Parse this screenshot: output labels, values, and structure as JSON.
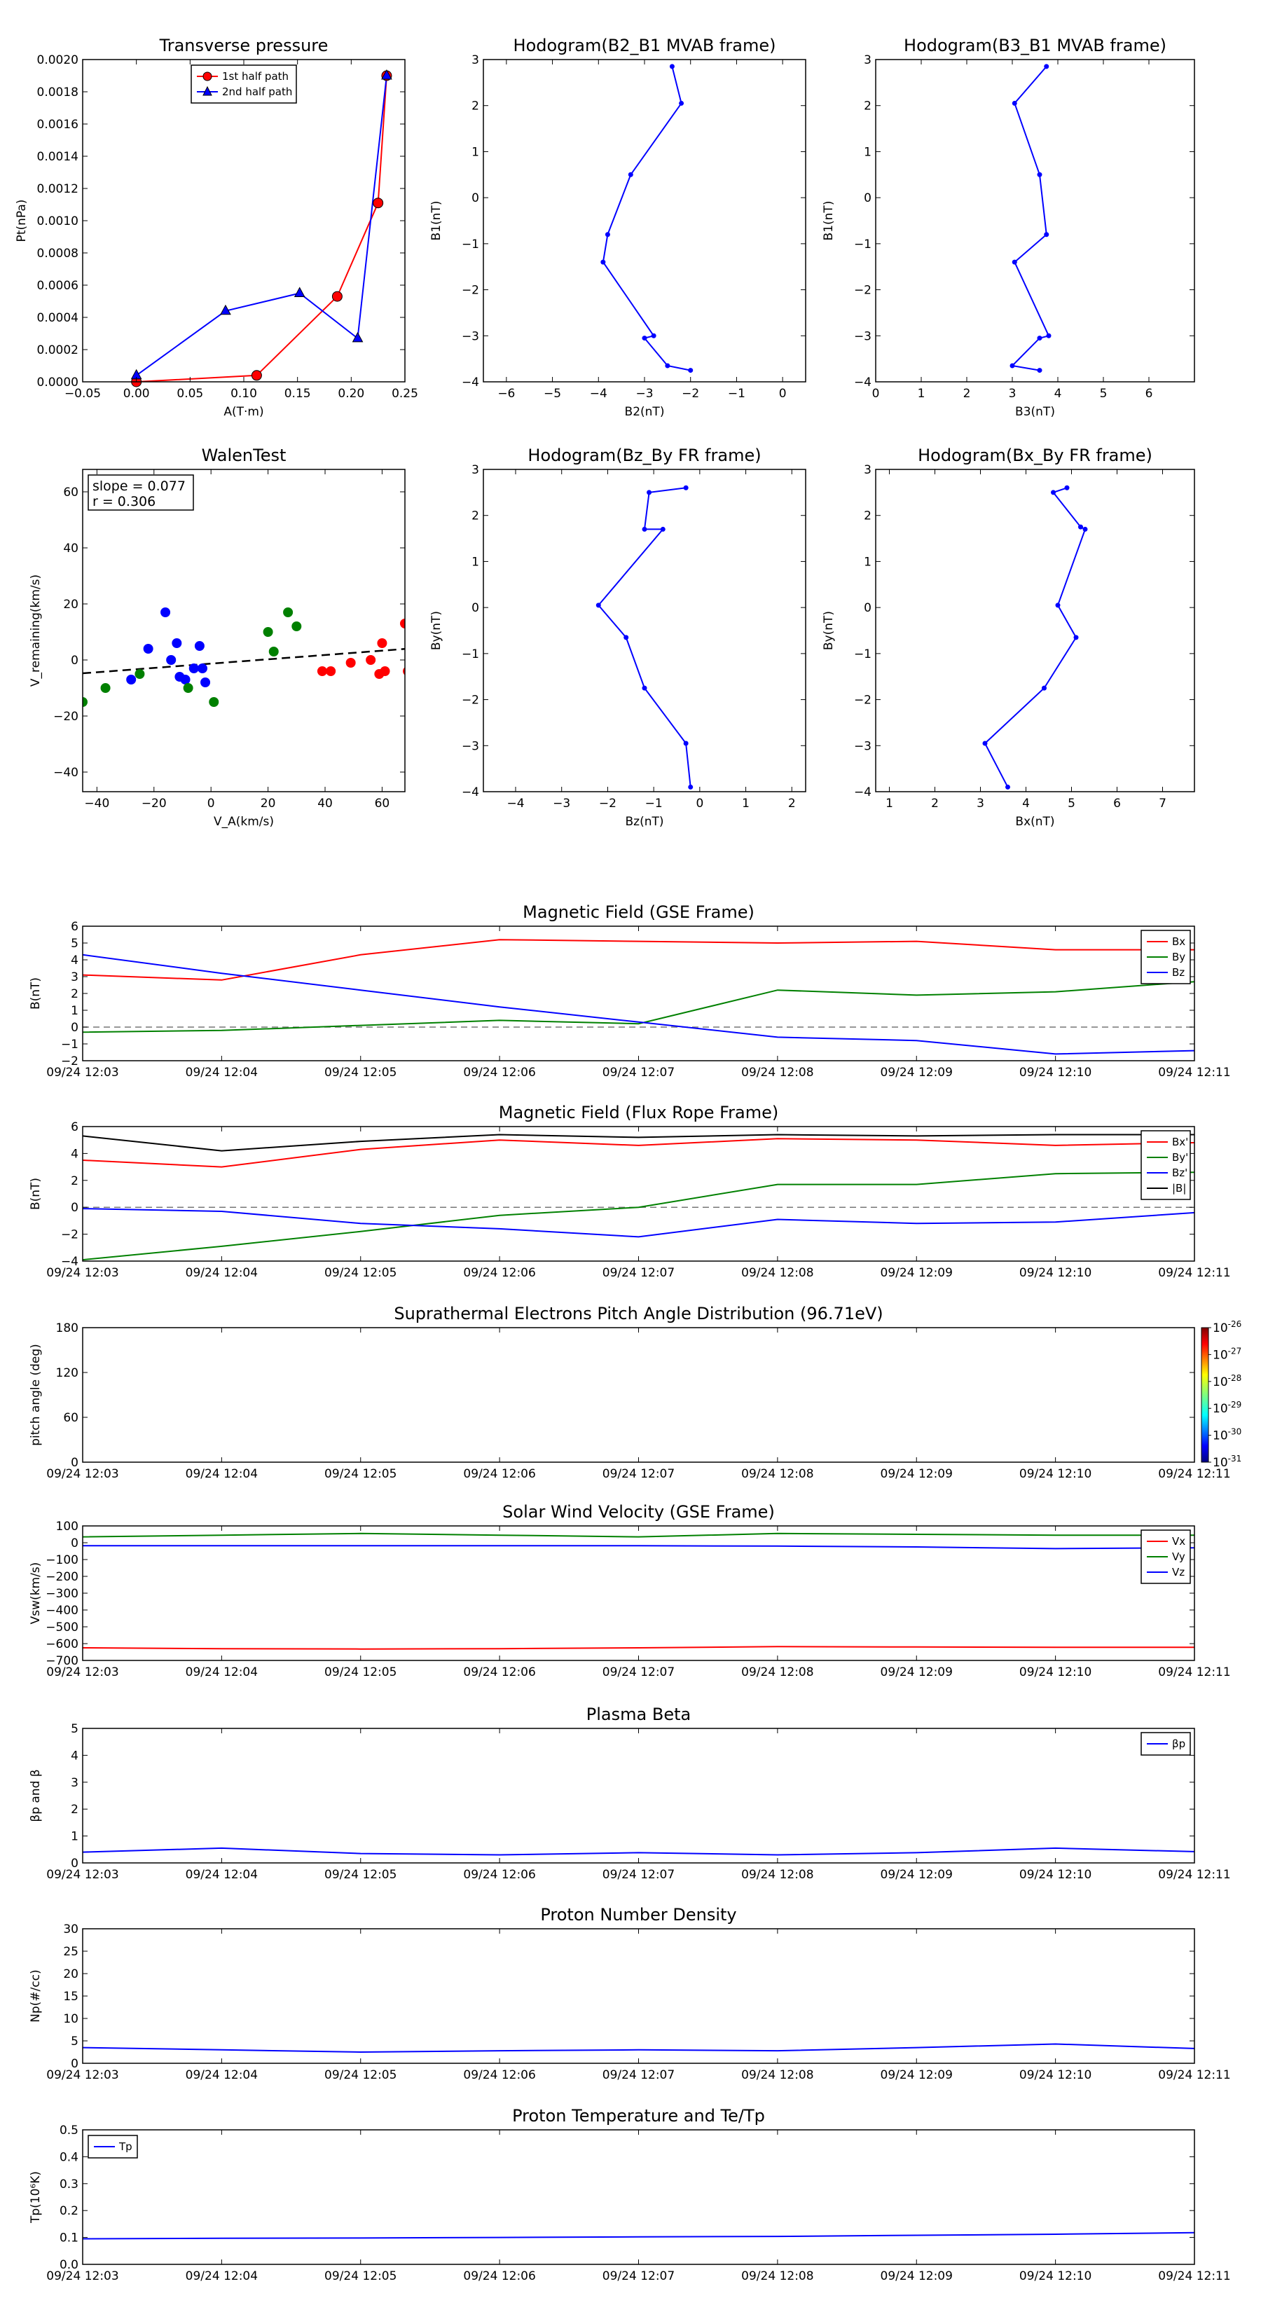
{
  "chart_data": [
    {
      "id": "tp",
      "type": "line",
      "title": "Transverse pressure",
      "xlabel": "A(T·m)",
      "ylabel": "Pt(nPa)",
      "xlim": [
        -0.05,
        0.25
      ],
      "ylim": [
        0,
        0.002
      ],
      "xticks": [
        -0.05,
        0.0,
        0.05,
        0.1,
        0.15,
        0.2,
        0.25
      ],
      "yticks": [
        0,
        0.0002,
        0.0004,
        0.0006,
        0.0008,
        0.001,
        0.0012,
        0.0014,
        0.0016,
        0.0018,
        0.002
      ],
      "xtick_labels": [
        "−0.05",
        "0.00",
        "0.05",
        "0.10",
        "0.15",
        "0.20",
        "0.25"
      ],
      "ytick_labels": [
        "0.0000",
        "0.0002",
        "0.0004",
        "0.0006",
        "0.0008",
        "0.0010",
        "0.0012",
        "0.0014",
        "0.0016",
        "0.0018",
        "0.0020"
      ],
      "legend": "top-center",
      "series": [
        {
          "name": "1st half path",
          "color": "#ff0000",
          "marker": "circle",
          "x": [
            0.0,
            0.112,
            0.187,
            0.225,
            0.233
          ],
          "y": [
            0.0,
            4e-05,
            0.00053,
            0.00111,
            0.0019
          ]
        },
        {
          "name": "2nd half path",
          "color": "#0000ff",
          "marker": "triangle",
          "x": [
            0.0,
            0.083,
            0.152,
            0.206,
            0.233
          ],
          "y": [
            4e-05,
            0.00044,
            0.00055,
            0.00027,
            0.0019
          ]
        }
      ]
    },
    {
      "id": "h1",
      "type": "line",
      "title": "Hodogram(B2_B1 MVAB frame)",
      "xlabel": "B2(nT)",
      "ylabel": "B1(nT)",
      "xlim": [
        -6.5,
        0.5
      ],
      "ylim": [
        -4,
        3
      ],
      "xticks": [
        -6,
        -5,
        -4,
        -3,
        -2,
        -1,
        0
      ],
      "yticks": [
        -4,
        -3,
        -2,
        -1,
        0,
        1,
        2,
        3
      ],
      "xtick_labels": [
        "−6",
        "−5",
        "−4",
        "−3",
        "−2",
        "−1",
        "0"
      ],
      "ytick_labels": [
        "−4",
        "−3",
        "−2",
        "−1",
        "0",
        "1",
        "2",
        "3"
      ],
      "series": [
        {
          "name": "",
          "color": "#0000ff",
          "marker": "dot",
          "x": [
            -2.4,
            -2.2,
            -3.3,
            -3.8,
            -3.9,
            -2.8,
            -3.0,
            -2.5,
            -2.0
          ],
          "y": [
            2.85,
            2.05,
            0.5,
            -0.8,
            -1.4,
            -3.0,
            -3.05,
            -3.65,
            -3.75
          ]
        }
      ]
    },
    {
      "id": "h2",
      "type": "line",
      "title": "Hodogram(B3_B1 MVAB frame)",
      "xlabel": "B3(nT)",
      "ylabel": "B1(nT)",
      "xlim": [
        0,
        7
      ],
      "ylim": [
        -4,
        3
      ],
      "xticks": [
        0,
        1,
        2,
        3,
        4,
        5,
        6
      ],
      "yticks": [
        -4,
        -3,
        -2,
        -1,
        0,
        1,
        2,
        3
      ],
      "xtick_labels": [
        "0",
        "1",
        "2",
        "3",
        "4",
        "5",
        "6"
      ],
      "ytick_labels": [
        "−4",
        "−3",
        "−2",
        "−1",
        "0",
        "1",
        "2",
        "3"
      ],
      "series": [
        {
          "name": "",
          "color": "#0000ff",
          "marker": "dot",
          "x": [
            3.75,
            3.05,
            3.6,
            3.75,
            3.05,
            3.8,
            3.6,
            3.0,
            3.6
          ],
          "y": [
            2.85,
            2.05,
            0.5,
            -0.8,
            -1.4,
            -3.0,
            -3.05,
            -3.65,
            -3.75
          ]
        }
      ]
    },
    {
      "id": "walen",
      "type": "scatter",
      "title": "WalenTest",
      "xlabel": "V_A(km/s)",
      "ylabel": "V_remaining(km/s)",
      "xlim": [
        -45,
        68
      ],
      "ylim": [
        -47,
        68
      ],
      "xticks": [
        -40,
        -20,
        0,
        20,
        40,
        60
      ],
      "yticks": [
        -40,
        -20,
        0,
        20,
        40,
        60
      ],
      "xtick_labels": [
        "−40",
        "−20",
        "0",
        "20",
        "40",
        "60"
      ],
      "ytick_labels": [
        "−40",
        "−20",
        "0",
        "20",
        "40",
        "60"
      ],
      "annotation": [
        "slope = 0.077",
        "r = 0.306"
      ],
      "fit": {
        "slope": 0.077,
        "intercept": -1.3
      },
      "series": [
        {
          "name": "",
          "color": "#0000ff",
          "x": [
            -22,
            -16,
            -14,
            -12,
            -11,
            -4,
            -3,
            -2,
            -28,
            -6,
            -9
          ],
          "y": [
            4,
            17,
            0,
            6,
            -6,
            5,
            -3,
            -8,
            -7,
            -3,
            -7
          ]
        },
        {
          "name": "",
          "color": "#008000",
          "x": [
            -45,
            -37,
            -25,
            -8,
            1,
            20,
            22,
            27,
            30
          ],
          "y": [
            -15,
            -10,
            -5,
            -10,
            -15,
            10,
            3,
            17,
            12
          ]
        },
        {
          "name": "",
          "color": "#ff0000",
          "x": [
            39,
            42,
            49,
            56,
            59,
            61,
            68,
            69,
            60
          ],
          "y": [
            -4,
            -4,
            -1,
            0,
            -5,
            -4,
            13,
            -4,
            6
          ]
        }
      ]
    },
    {
      "id": "h3",
      "type": "line",
      "title": "Hodogram(Bz_By FR frame)",
      "xlabel": "Bz(nT)",
      "ylabel": "By(nT)",
      "xlim": [
        -4.7,
        2.3
      ],
      "ylim": [
        -4,
        3
      ],
      "xticks": [
        -4,
        -3,
        -2,
        -1,
        0,
        1,
        2
      ],
      "yticks": [
        -4,
        -3,
        -2,
        -1,
        0,
        1,
        2,
        3
      ],
      "xtick_labels": [
        "−4",
        "−3",
        "−2",
        "−1",
        "0",
        "1",
        "2"
      ],
      "ytick_labels": [
        "−4",
        "−3",
        "−2",
        "−1",
        "0",
        "1",
        "2",
        "3"
      ],
      "series": [
        {
          "name": "",
          "color": "#0000ff",
          "marker": "dot",
          "x": [
            -0.3,
            -1.1,
            -1.2,
            -0.8,
            -2.2,
            -1.6,
            -1.2,
            -0.3,
            -0.2
          ],
          "y": [
            2.6,
            2.5,
            1.7,
            1.7,
            0.05,
            -0.65,
            -1.75,
            -2.95,
            -3.9
          ]
        }
      ]
    },
    {
      "id": "h4",
      "type": "line",
      "title": "Hodogram(Bx_By FR frame)",
      "xlabel": "Bx(nT)",
      "ylabel": "By(nT)",
      "xlim": [
        0.7,
        7.7
      ],
      "ylim": [
        -4,
        3
      ],
      "xticks": [
        1,
        2,
        3,
        4,
        5,
        6,
        7
      ],
      "yticks": [
        -4,
        -3,
        -2,
        -1,
        0,
        1,
        2,
        3
      ],
      "xtick_labels": [
        "1",
        "2",
        "3",
        "4",
        "5",
        "6",
        "7"
      ],
      "ytick_labels": [
        "−4",
        "−3",
        "−2",
        "−1",
        "0",
        "1",
        "2",
        "3"
      ],
      "series": [
        {
          "name": "",
          "color": "#0000ff",
          "marker": "dot",
          "x": [
            4.9,
            4.6,
            5.2,
            5.3,
            4.7,
            5.1,
            4.4,
            3.1,
            3.6
          ],
          "y": [
            2.6,
            2.5,
            1.75,
            1.7,
            0.05,
            -0.65,
            -1.75,
            -2.95,
            -3.9
          ]
        }
      ]
    },
    {
      "id": "mag_gse",
      "type": "line",
      "title": "Magnetic Field (GSE Frame)",
      "ylabel": "B(nT)",
      "xlim": [
        0,
        8
      ],
      "ylim": [
        -2,
        6
      ],
      "yticks": [
        -2,
        -1,
        0,
        1,
        2,
        3,
        4,
        5,
        6
      ],
      "ytick_labels": [
        "−2",
        "−1",
        "0",
        "1",
        "2",
        "3",
        "4",
        "5",
        "6"
      ],
      "hline": 0,
      "legend": "top-right",
      "series": [
        {
          "name": "Bx",
          "color": "#ff0000",
          "x": [
            0,
            1,
            2,
            3,
            4,
            5,
            6,
            7,
            8
          ],
          "y": [
            3.1,
            2.8,
            4.3,
            5.2,
            5.1,
            5.0,
            5.1,
            4.6,
            4.6
          ]
        },
        {
          "name": "By",
          "color": "#008000",
          "x": [
            0,
            1,
            2,
            3,
            4,
            5,
            6,
            7,
            8
          ],
          "y": [
            -0.3,
            -0.2,
            0.1,
            0.4,
            0.2,
            2.2,
            1.9,
            2.1,
            2.7
          ]
        },
        {
          "name": "Bz",
          "color": "#0000ff",
          "x": [
            0,
            1,
            2,
            3,
            4,
            5,
            6,
            7,
            8
          ],
          "y": [
            4.3,
            3.2,
            2.2,
            1.2,
            0.3,
            -0.6,
            -0.8,
            -1.6,
            -1.4
          ]
        }
      ]
    },
    {
      "id": "mag_fr",
      "type": "line",
      "title": "Magnetic Field (Flux Rope Frame)",
      "ylabel": "B(nT)",
      "xlim": [
        0,
        8
      ],
      "ylim": [
        -4,
        6
      ],
      "yticks": [
        -4,
        -2,
        0,
        2,
        4,
        6
      ],
      "ytick_labels": [
        "−4",
        "−2",
        "0",
        "2",
        "4",
        "6"
      ],
      "hline": 0,
      "legend": "top-right",
      "series": [
        {
          "name": "Bx'",
          "color": "#ff0000",
          "x": [
            0,
            1,
            2,
            3,
            4,
            5,
            6,
            7,
            8
          ],
          "y": [
            3.5,
            3.0,
            4.3,
            5.0,
            4.6,
            5.1,
            5.0,
            4.6,
            4.8
          ]
        },
        {
          "name": "By'",
          "color": "#008000",
          "x": [
            0,
            1,
            2,
            3,
            4,
            5,
            6,
            7,
            8
          ],
          "y": [
            -3.9,
            -2.9,
            -1.8,
            -0.6,
            0.0,
            1.7,
            1.7,
            2.5,
            2.6
          ]
        },
        {
          "name": "Bz'",
          "color": "#0000ff",
          "x": [
            0,
            1,
            2,
            3,
            4,
            5,
            6,
            7,
            8
          ],
          "y": [
            -0.1,
            -0.3,
            -1.2,
            -1.6,
            -2.2,
            -0.9,
            -1.2,
            -1.1,
            -0.4
          ]
        },
        {
          "name": "|B|",
          "color": "#000000",
          "x": [
            0,
            1,
            2,
            3,
            4,
            5,
            6,
            7,
            8
          ],
          "y": [
            5.3,
            4.2,
            4.9,
            5.4,
            5.2,
            5.4,
            5.3,
            5.4,
            5.4
          ]
        }
      ]
    },
    {
      "id": "pad",
      "type": "heatmap",
      "title": "Suprathermal Electrons Pitch Angle Distribution (96.71eV)",
      "ylabel": "pitch angle (deg)",
      "xlim": [
        0,
        8
      ],
      "ylim": [
        0,
        180
      ],
      "yticks": [
        0,
        60,
        120,
        180
      ],
      "ytick_labels": [
        "0",
        "60",
        "120",
        "180"
      ],
      "colorbar": {
        "base": "10",
        "exponents": [
          "-26",
          "-27",
          "-28",
          "-29",
          "-30",
          "-31"
        ]
      }
    },
    {
      "id": "vsw",
      "type": "line",
      "title": "Solar Wind Velocity (GSE Frame)",
      "ylabel": "Vsw(km/s)",
      "xlim": [
        0,
        8
      ],
      "ylim": [
        -700,
        100
      ],
      "yticks": [
        -700,
        -600,
        -500,
        -400,
        -300,
        -200,
        -100,
        0,
        100
      ],
      "ytick_labels": [
        "−700",
        "−600",
        "−500",
        "−400",
        "−300",
        "−200",
        "−100",
        "0",
        "100"
      ],
      "legend": "top-right",
      "series": [
        {
          "name": "Vx",
          "color": "#ff0000",
          "x": [
            0,
            1,
            2,
            3,
            4,
            5,
            6,
            7,
            8
          ],
          "y": [
            -625,
            -630,
            -632,
            -630,
            -625,
            -618,
            -620,
            -622,
            -622
          ]
        },
        {
          "name": "Vy",
          "color": "#008000",
          "x": [
            0,
            1,
            2,
            3,
            4,
            5,
            6,
            7,
            8
          ],
          "y": [
            35,
            45,
            55,
            45,
            35,
            55,
            50,
            45,
            45
          ]
        },
        {
          "name": "Vz",
          "color": "#0000ff",
          "x": [
            0,
            1,
            2,
            3,
            4,
            5,
            6,
            7,
            8
          ],
          "y": [
            -18,
            -18,
            -18,
            -18,
            -18,
            -20,
            -25,
            -35,
            -30
          ]
        }
      ]
    },
    {
      "id": "beta",
      "type": "line",
      "title": "Plasma Beta",
      "ylabel": "βp and β",
      "xlim": [
        0,
        8
      ],
      "ylim": [
        0,
        5
      ],
      "yticks": [
        0,
        1,
        2,
        3,
        4,
        5
      ],
      "ytick_labels": [
        "0",
        "1",
        "2",
        "3",
        "4",
        "5"
      ],
      "legend": "top-right",
      "series": [
        {
          "name": "βp",
          "color": "#0000ff",
          "x": [
            0,
            1,
            2,
            3,
            4,
            5,
            6,
            7,
            8
          ],
          "y": [
            0.4,
            0.55,
            0.35,
            0.3,
            0.38,
            0.3,
            0.38,
            0.55,
            0.42
          ]
        }
      ]
    },
    {
      "id": "np",
      "type": "line",
      "title": "Proton Number Density",
      "ylabel": "Np(#/cc)",
      "xlim": [
        0,
        8
      ],
      "ylim": [
        0,
        30
      ],
      "yticks": [
        0,
        5,
        10,
        15,
        20,
        25,
        30
      ],
      "ytick_labels": [
        "0",
        "5",
        "10",
        "15",
        "20",
        "25",
        "30"
      ],
      "series": [
        {
          "name": "",
          "color": "#0000ff",
          "x": [
            0,
            1,
            2,
            3,
            4,
            5,
            6,
            7,
            8
          ],
          "y": [
            3.5,
            3.0,
            2.5,
            2.8,
            3.0,
            2.8,
            3.5,
            4.3,
            3.3
          ]
        }
      ]
    },
    {
      "id": "tp2",
      "type": "line",
      "title": "Proton Temperature and Te/Tp",
      "ylabel": "Tp(10⁶K)",
      "xlim": [
        0,
        8
      ],
      "ylim": [
        0,
        0.5
      ],
      "yticks": [
        0,
        0.1,
        0.2,
        0.3,
        0.4,
        0.5
      ],
      "ytick_labels": [
        "0.0",
        "0.1",
        "0.2",
        "0.3",
        "0.4",
        "0.5"
      ],
      "legend": "top-left",
      "series": [
        {
          "name": "Tp",
          "color": "#0000ff",
          "x": [
            0,
            1,
            2,
            3,
            4,
            5,
            6,
            7,
            8
          ],
          "y": [
            0.095,
            0.097,
            0.098,
            0.1,
            0.102,
            0.104,
            0.108,
            0.112,
            0.118
          ]
        }
      ]
    }
  ],
  "time_ticks": [
    "09/24 12:03",
    "09/24 12:04",
    "09/24 12:05",
    "09/24 12:06",
    "09/24 12:07",
    "09/24 12:08",
    "09/24 12:09",
    "09/24 12:10",
    "09/24 12:11"
  ]
}
